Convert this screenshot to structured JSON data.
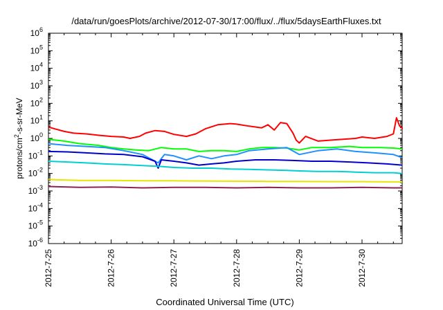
{
  "chart_data": {
    "type": "line",
    "title": "/data/run/goesPlots/archive/2012-07-30/17:00/flux/../flux/5daysEarthFluxes.txt",
    "xlabel": "Coordinated Universal Time (UTC)",
    "ylabel": "protons/cm2-s-sr-MeV",
    "ylabel_parts": [
      "protons/cm",
      "2",
      "-s-sr-MeV"
    ],
    "y_scale": "log",
    "ylim": [
      1e-06,
      1000000.0
    ],
    "y_ticks": [
      {
        "exp": "-6",
        "v": -6
      },
      {
        "exp": "-5",
        "v": -5
      },
      {
        "exp": "-4",
        "v": -4
      },
      {
        "exp": "-3",
        "v": -3
      },
      {
        "exp": "-2",
        "v": -2
      },
      {
        "exp": "-1",
        "v": -1
      },
      {
        "exp": "0",
        "v": 0
      },
      {
        "exp": "1",
        "v": 1
      },
      {
        "exp": "2",
        "v": 2
      },
      {
        "exp": "3",
        "v": 3
      },
      {
        "exp": "4",
        "v": 4
      },
      {
        "exp": "5",
        "v": 5
      },
      {
        "exp": "6",
        "v": 6
      }
    ],
    "y_tick_base": "10",
    "x_ticks": [
      "2012-7-25",
      "2012-7-26",
      "2012-7-27",
      "2012-7-28",
      "2012-7-29",
      "2012-7-30"
    ],
    "x_range_days": [
      0,
      5.75
    ],
    "grid": false,
    "series": [
      {
        "color": "#ff0000",
        "x": [
          0,
          0.1,
          0.25,
          0.4,
          0.6,
          0.8,
          1.0,
          1.2,
          1.3,
          1.45,
          1.55,
          1.7,
          1.85,
          2.0,
          2.2,
          2.35,
          2.5,
          2.7,
          2.9,
          3.0,
          3.2,
          3.4,
          3.5,
          3.6,
          3.7,
          3.8,
          3.9,
          3.95,
          4.0,
          4.1,
          4.3,
          4.5,
          4.7,
          4.9,
          5.0,
          5.2,
          5.4,
          5.5,
          5.55,
          5.6,
          5.65,
          5.75
        ],
        "y": [
          4.5,
          3.5,
          2.5,
          2.0,
          1.8,
          1.5,
          1.3,
          1.2,
          1.0,
          1.3,
          2.0,
          2.8,
          2.5,
          1.7,
          1.3,
          1.8,
          3.5,
          6.0,
          7.0,
          6.5,
          5.0,
          4.0,
          6.0,
          3.0,
          8.0,
          7.0,
          2.0,
          0.8,
          0.55,
          1.3,
          0.7,
          0.8,
          0.9,
          1.0,
          1.2,
          1.0,
          1.3,
          1.8,
          15.0,
          5.0,
          4.0,
          3.5
        ]
      },
      {
        "color": "#00ff00",
        "x": [
          0,
          0.25,
          0.5,
          0.8,
          1.0,
          1.2,
          1.4,
          1.6,
          1.8,
          2.0,
          2.2,
          2.4,
          2.6,
          2.8,
          3.0,
          3.2,
          3.4,
          3.6,
          3.8,
          4.0,
          4.2,
          4.5,
          4.8,
          5.0,
          5.3,
          5.5,
          5.75
        ],
        "y": [
          0.9,
          0.7,
          0.5,
          0.4,
          0.3,
          0.25,
          0.22,
          0.2,
          0.3,
          0.25,
          0.25,
          0.18,
          0.2,
          0.2,
          0.18,
          0.25,
          0.3,
          0.3,
          0.28,
          0.22,
          0.3,
          0.3,
          0.35,
          0.3,
          0.3,
          0.28,
          0.25
        ]
      },
      {
        "color": "#1e90ff",
        "x": [
          0,
          0.3,
          0.6,
          0.9,
          1.2,
          1.5,
          1.75,
          1.85,
          2.0,
          2.2,
          2.4,
          2.6,
          2.8,
          3.0,
          3.2,
          3.5,
          3.8,
          4.0,
          4.3,
          4.6,
          4.9,
          5.2,
          5.5,
          5.75
        ],
        "y": [
          0.5,
          0.4,
          0.35,
          0.3,
          0.2,
          0.12,
          0.04,
          0.12,
          0.1,
          0.06,
          0.1,
          0.07,
          0.1,
          0.12,
          0.2,
          0.25,
          0.3,
          0.12,
          0.2,
          0.25,
          0.18,
          0.15,
          0.12,
          0.08
        ]
      },
      {
        "color": "#0000cd",
        "x": [
          0,
          0.3,
          0.6,
          0.9,
          1.2,
          1.5,
          1.7,
          1.75,
          1.8,
          2.0,
          2.2,
          2.4,
          2.6,
          2.8,
          3.0,
          3.3,
          3.6,
          3.9,
          4.2,
          4.5,
          4.8,
          5.1,
          5.4,
          5.75
        ],
        "y": [
          0.18,
          0.17,
          0.15,
          0.13,
          0.12,
          0.09,
          0.05,
          0.02,
          0.06,
          0.05,
          0.04,
          0.03,
          0.035,
          0.04,
          0.05,
          0.06,
          0.06,
          0.055,
          0.05,
          0.05,
          0.045,
          0.04,
          0.035,
          0.03
        ]
      },
      {
        "color": "#00ced1",
        "x": [
          0,
          0.3,
          0.6,
          0.9,
          1.2,
          1.5,
          1.8,
          2.0,
          2.3,
          2.6,
          2.9,
          3.2,
          3.5,
          3.8,
          4.0,
          4.3,
          4.6,
          4.9,
          5.2,
          5.5,
          5.75
        ],
        "y": [
          0.05,
          0.045,
          0.04,
          0.035,
          0.032,
          0.028,
          0.025,
          0.022,
          0.02,
          0.02,
          0.018,
          0.017,
          0.016,
          0.015,
          0.014,
          0.013,
          0.013,
          0.012,
          0.011,
          0.011,
          0.01
        ]
      },
      {
        "color": "#e6e600",
        "x": [
          0,
          0.5,
          1.0,
          1.5,
          2.0,
          2.5,
          3.0,
          3.5,
          4.0,
          4.5,
          5.0,
          5.5,
          5.75
        ],
        "y": [
          0.0045,
          0.004,
          0.004,
          0.0038,
          0.0038,
          0.0037,
          0.0036,
          0.0035,
          0.0035,
          0.0034,
          0.0034,
          0.0033,
          0.0033
        ]
      },
      {
        "color": "#8b2252",
        "x": [
          0,
          0.5,
          1.0,
          1.5,
          2.0,
          2.5,
          3.0,
          3.5,
          4.0,
          4.5,
          5.0,
          5.5,
          5.75
        ],
        "y": [
          0.0018,
          0.0016,
          0.0017,
          0.0015,
          0.0016,
          0.0016,
          0.0015,
          0.0016,
          0.0015,
          0.0015,
          0.0016,
          0.0015,
          0.0015
        ]
      }
    ]
  }
}
